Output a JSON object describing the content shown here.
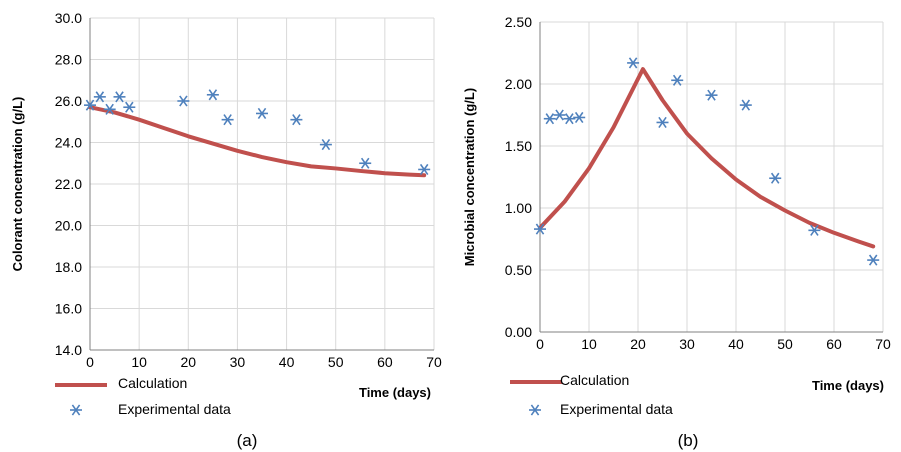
{
  "colors": {
    "calculation": "#c0504d",
    "experimental": "#4f81bd",
    "axis": "#808080",
    "text": "#000000"
  },
  "chart_data": [
    {
      "type": "line",
      "panel_label": "(a)",
      "xlabel": "Time (days)",
      "ylabel": "Colorant concentration (g/L)",
      "xlim": [
        0,
        70
      ],
      "ylim": [
        14,
        30
      ],
      "xticks": [
        0,
        10,
        20,
        30,
        40,
        50,
        60,
        70
      ],
      "yticks": [
        "14.0",
        "16.0",
        "18.0",
        "20.0",
        "22.0",
        "24.0",
        "26.0",
        "28.0",
        "30.0"
      ],
      "grid": true,
      "legend_position": "bottom-left",
      "series": [
        {
          "name": "Calculation",
          "kind": "line",
          "x": [
            0,
            5,
            10,
            15,
            20,
            25,
            30,
            35,
            40,
            45,
            50,
            55,
            60,
            65,
            68
          ],
          "y": [
            25.7,
            25.45,
            25.1,
            24.7,
            24.3,
            23.95,
            23.6,
            23.3,
            23.05,
            22.85,
            22.75,
            22.63,
            22.52,
            22.45,
            22.42
          ]
        },
        {
          "name": "Experimental data",
          "kind": "scatter",
          "x": [
            0,
            2,
            4,
            6,
            8,
            19,
            25,
            28,
            35,
            42,
            48,
            56,
            68
          ],
          "y": [
            25.8,
            26.2,
            25.6,
            26.2,
            25.7,
            26.0,
            26.3,
            25.1,
            25.4,
            25.1,
            23.9,
            23.0,
            22.7
          ]
        }
      ]
    },
    {
      "type": "line",
      "panel_label": "(b)",
      "xlabel": "Time (days)",
      "ylabel": "Microbial concentration (g/L)",
      "xlim": [
        0,
        70
      ],
      "ylim": [
        0,
        2.5
      ],
      "xticks": [
        0,
        10,
        20,
        30,
        40,
        50,
        60,
        70
      ],
      "yticks": [
        "0.00",
        "0.50",
        "1.00",
        "1.50",
        "2.00",
        "2.50"
      ],
      "grid": true,
      "legend_position": "bottom-left",
      "series": [
        {
          "name": "Calculation",
          "kind": "line",
          "x": [
            0,
            5,
            10,
            15,
            21,
            25,
            30,
            35,
            40,
            45,
            50,
            55,
            60,
            65,
            68
          ],
          "y": [
            0.84,
            1.05,
            1.32,
            1.65,
            2.12,
            1.87,
            1.6,
            1.4,
            1.23,
            1.09,
            0.98,
            0.88,
            0.8,
            0.73,
            0.69
          ]
        },
        {
          "name": "Experimental data",
          "kind": "scatter",
          "x": [
            0,
            2,
            4,
            6,
            8,
            19,
            25,
            28,
            35,
            42,
            48,
            56,
            68
          ],
          "y": [
            0.83,
            1.72,
            1.75,
            1.72,
            1.73,
            2.17,
            1.69,
            2.03,
            1.91,
            1.83,
            1.24,
            0.82,
            0.58
          ]
        }
      ]
    }
  ]
}
